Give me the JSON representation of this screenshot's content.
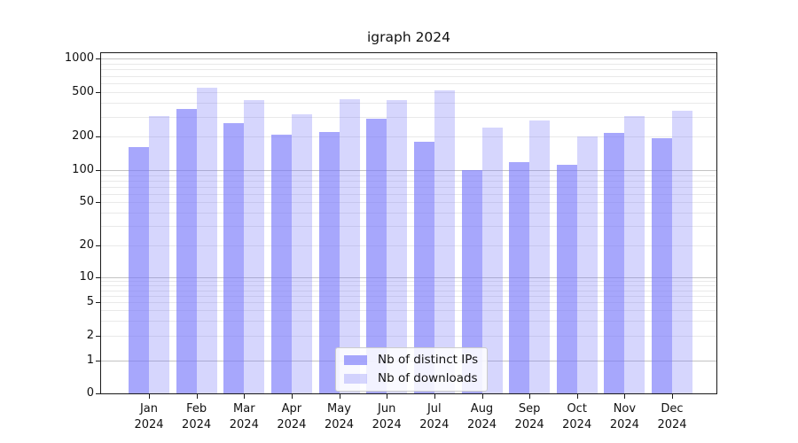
{
  "title": "igraph 2024",
  "chart_data": {
    "type": "bar",
    "title": "igraph 2024",
    "categories": [
      "Jan",
      "Feb",
      "Mar",
      "Apr",
      "May",
      "Jun",
      "Jul",
      "Aug",
      "Sep",
      "Oct",
      "Nov",
      "Dec"
    ],
    "category_year": "2024",
    "series": [
      {
        "name": "Nb of distinct IPs",
        "color": "rgba(120,120,250,0.65)",
        "color_hex_on_white": "#a8a8fb",
        "values": [
          160,
          350,
          266,
          208,
          220,
          288,
          180,
          100,
          118,
          112,
          215,
          193
        ]
      },
      {
        "name": "Nb of downloads",
        "color": "rgba(120,120,250,0.30)",
        "color_hex_on_white": "#d9d9fd",
        "values": [
          303,
          545,
          424,
          315,
          430,
          425,
          520,
          240,
          278,
          200,
          305,
          340
        ]
      }
    ],
    "yscale": "logarithmic with 0 baseline",
    "ytick_values": [
      1000,
      500,
      200,
      100,
      50,
      20,
      10,
      5,
      2,
      1,
      0
    ],
    "ytick_labels": [
      "1000",
      "500",
      "200",
      "100",
      "50",
      "20",
      "10",
      "5",
      "2",
      "1",
      "0"
    ],
    "ylim": [
      0,
      1120
    ],
    "grid": true,
    "grid_major_color": "#c3c3c3",
    "grid_minor_color": "#e9e9e9",
    "legend_position": "lower center",
    "legend_entries": [
      "Nb of distinct IPs",
      "Nb of downloads"
    ]
  }
}
